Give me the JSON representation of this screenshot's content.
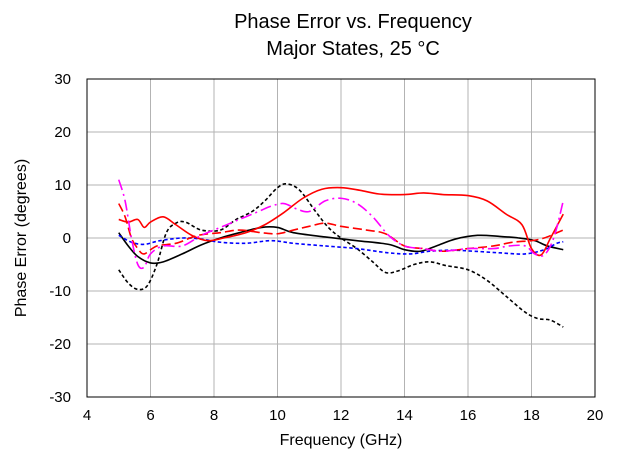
{
  "chart_data": {
    "type": "line",
    "title": "Phase Error vs. Frequency",
    "subtitle": "Major States, 25 °C",
    "xlabel": "Frequency (GHz)",
    "ylabel": "Phase Error (degrees)",
    "xlim": [
      4,
      20
    ],
    "ylim": [
      -30,
      30
    ],
    "x_ticks": [
      "4",
      "6",
      "8",
      "10",
      "12",
      "14",
      "16",
      "18",
      "20"
    ],
    "y_ticks": [
      "-30",
      "-20",
      "-10",
      "0",
      "10",
      "20",
      "30"
    ],
    "grid": true,
    "legend": "none",
    "series": [
      {
        "color": "#000000",
        "dash": "solid",
        "points": [
          [
            5.0,
            1.0
          ],
          [
            5.3,
            -1.5
          ],
          [
            5.6,
            -3.5
          ],
          [
            6.0,
            -4.7
          ],
          [
            6.4,
            -4.5
          ],
          [
            7.0,
            -3.0
          ],
          [
            7.6,
            -1.3
          ],
          [
            8.2,
            0.0
          ],
          [
            8.8,
            1.0
          ],
          [
            9.5,
            2.0
          ],
          [
            10.0,
            2.0
          ],
          [
            10.5,
            1.0
          ],
          [
            11.5,
            0.2
          ],
          [
            12.5,
            -0.5
          ],
          [
            13.5,
            -1.2
          ],
          [
            14.0,
            -2.2
          ],
          [
            14.5,
            -2.5
          ],
          [
            15.0,
            -1.5
          ],
          [
            15.6,
            -0.2
          ],
          [
            16.3,
            0.5
          ],
          [
            17.0,
            0.3
          ],
          [
            17.6,
            0.0
          ],
          [
            18.1,
            -0.5
          ],
          [
            18.5,
            -1.5
          ],
          [
            19.0,
            -2.2
          ]
        ]
      },
      {
        "color": "#000000",
        "dash": "dot",
        "points": [
          [
            5.0,
            -6.0
          ],
          [
            5.3,
            -8.5
          ],
          [
            5.6,
            -9.7
          ],
          [
            5.9,
            -9.0
          ],
          [
            6.2,
            -5.0
          ],
          [
            6.5,
            1.0
          ],
          [
            6.8,
            2.8
          ],
          [
            7.1,
            3.0
          ],
          [
            7.6,
            1.5
          ],
          [
            8.2,
            1.5
          ],
          [
            8.7,
            3.5
          ],
          [
            9.2,
            5.0
          ],
          [
            9.6,
            7.0
          ],
          [
            10.0,
            9.5
          ],
          [
            10.3,
            10.2
          ],
          [
            10.7,
            9.0
          ],
          [
            11.2,
            5.0
          ],
          [
            11.6,
            2.0
          ],
          [
            12.0,
            0.0
          ],
          [
            12.5,
            -2.0
          ],
          [
            13.0,
            -4.5
          ],
          [
            13.4,
            -6.5
          ],
          [
            13.8,
            -6.2
          ],
          [
            14.3,
            -5.0
          ],
          [
            14.8,
            -4.5
          ],
          [
            15.3,
            -5.2
          ],
          [
            16.0,
            -6.0
          ],
          [
            16.6,
            -8.0
          ],
          [
            17.2,
            -11.0
          ],
          [
            17.8,
            -14.0
          ],
          [
            18.2,
            -15.2
          ],
          [
            18.6,
            -15.5
          ],
          [
            19.0,
            -16.8
          ]
        ]
      },
      {
        "color": "#0000ff",
        "dash": "dot",
        "points": [
          [
            5.0,
            0.5
          ],
          [
            5.4,
            -0.8
          ],
          [
            5.8,
            -1.2
          ],
          [
            6.3,
            -0.5
          ],
          [
            7.0,
            0.0
          ],
          [
            7.6,
            -0.2
          ],
          [
            8.2,
            -0.8
          ],
          [
            9.0,
            -1.0
          ],
          [
            9.8,
            -0.5
          ],
          [
            10.5,
            -1.0
          ],
          [
            11.5,
            -1.5
          ],
          [
            12.5,
            -2.0
          ],
          [
            13.5,
            -2.8
          ],
          [
            14.2,
            -3.0
          ],
          [
            14.8,
            -2.5
          ],
          [
            15.5,
            -2.3
          ],
          [
            16.2,
            -2.5
          ],
          [
            17.0,
            -2.8
          ],
          [
            17.8,
            -3.0
          ],
          [
            18.4,
            -2.2
          ],
          [
            18.8,
            -1.0
          ],
          [
            19.0,
            -0.7
          ]
        ]
      },
      {
        "color": "#ff0000",
        "dash": "solid",
        "points": [
          [
            5.0,
            3.5
          ],
          [
            5.3,
            3.0
          ],
          [
            5.6,
            3.5
          ],
          [
            5.8,
            2.0
          ],
          [
            6.0,
            3.0
          ],
          [
            6.4,
            4.0
          ],
          [
            6.8,
            2.5
          ],
          [
            7.3,
            0.5
          ],
          [
            7.8,
            -0.5
          ],
          [
            8.3,
            0.0
          ],
          [
            9.0,
            1.0
          ],
          [
            9.6,
            2.5
          ],
          [
            10.2,
            4.8
          ],
          [
            10.8,
            7.5
          ],
          [
            11.4,
            9.2
          ],
          [
            12.0,
            9.5
          ],
          [
            12.6,
            9.0
          ],
          [
            13.2,
            8.3
          ],
          [
            14.0,
            8.2
          ],
          [
            14.6,
            8.5
          ],
          [
            15.2,
            8.2
          ],
          [
            16.0,
            8.0
          ],
          [
            16.6,
            7.0
          ],
          [
            17.2,
            4.5
          ],
          [
            17.7,
            2.5
          ],
          [
            18.0,
            -2.0
          ],
          [
            18.3,
            -3.2
          ],
          [
            18.6,
            0.0
          ],
          [
            19.0,
            4.5
          ]
        ]
      },
      {
        "color": "#ff0000",
        "dash": "dash",
        "points": [
          [
            5.0,
            6.5
          ],
          [
            5.2,
            4.0
          ],
          [
            5.4,
            0.0
          ],
          [
            5.6,
            -2.0
          ],
          [
            5.8,
            -3.0
          ],
          [
            6.2,
            -1.5
          ],
          [
            6.8,
            -1.0
          ],
          [
            7.5,
            0.5
          ],
          [
            8.2,
            1.0
          ],
          [
            8.8,
            1.5
          ],
          [
            9.5,
            1.0
          ],
          [
            10.0,
            0.8
          ],
          [
            10.5,
            1.5
          ],
          [
            11.0,
            2.2
          ],
          [
            11.5,
            2.8
          ],
          [
            12.0,
            2.2
          ],
          [
            12.8,
            1.5
          ],
          [
            13.4,
            0.8
          ],
          [
            14.0,
            -1.5
          ],
          [
            14.6,
            -2.0
          ],
          [
            15.2,
            -2.5
          ],
          [
            16.0,
            -2.0
          ],
          [
            16.8,
            -1.5
          ],
          [
            17.4,
            -0.8
          ],
          [
            18.0,
            -0.5
          ],
          [
            18.4,
            0.0
          ],
          [
            18.8,
            1.0
          ],
          [
            19.0,
            1.5
          ]
        ]
      },
      {
        "color": "#ff00ff",
        "dash": "dashdot",
        "points": [
          [
            5.0,
            11.0
          ],
          [
            5.2,
            7.0
          ],
          [
            5.4,
            0.0
          ],
          [
            5.6,
            -5.0
          ],
          [
            5.8,
            -5.5
          ],
          [
            6.0,
            -3.0
          ],
          [
            6.4,
            -1.5
          ],
          [
            7.0,
            -1.5
          ],
          [
            7.6,
            0.5
          ],
          [
            8.2,
            2.0
          ],
          [
            8.8,
            3.5
          ],
          [
            9.4,
            5.0
          ],
          [
            9.8,
            6.0
          ],
          [
            10.2,
            6.5
          ],
          [
            10.6,
            5.5
          ],
          [
            11.0,
            5.0
          ],
          [
            11.5,
            7.0
          ],
          [
            12.0,
            7.5
          ],
          [
            12.5,
            6.5
          ],
          [
            13.0,
            4.0
          ],
          [
            13.5,
            0.5
          ],
          [
            14.0,
            -1.5
          ],
          [
            14.6,
            -2.0
          ],
          [
            15.2,
            -2.5
          ],
          [
            16.0,
            -2.0
          ],
          [
            16.8,
            -2.0
          ],
          [
            17.3,
            -1.5
          ],
          [
            17.8,
            -1.5
          ],
          [
            18.1,
            -3.0
          ],
          [
            18.4,
            -3.2
          ],
          [
            18.7,
            0.0
          ],
          [
            19.0,
            7.0
          ]
        ]
      }
    ]
  }
}
